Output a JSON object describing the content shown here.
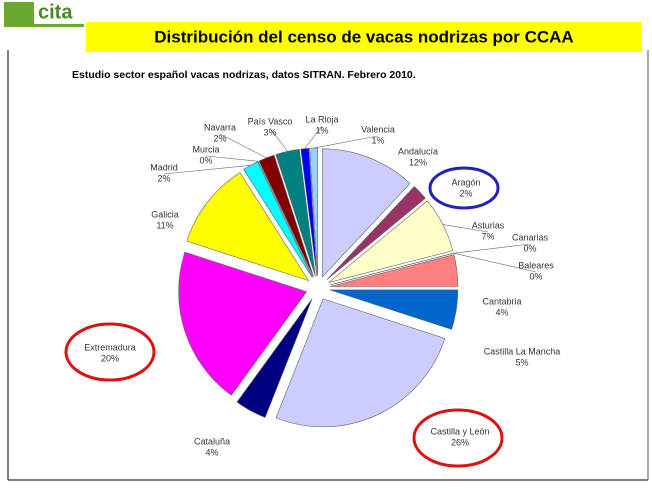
{
  "logo": "cita",
  "chart_data": {
    "type": "pie",
    "title": "Distribución del censo de vacas nodrizas por CCAA",
    "subtitle": "Estudio sector español vacas nodrizas, datos SITRAN. Febrero 2010.",
    "categories": [
      "Andalucía",
      "Aragón",
      "Asturias",
      "Canarias",
      "Baleares",
      "Cantabria",
      "Castilla La Mancha",
      "Castilla y León",
      "Cataluña",
      "Extremadura",
      "Galicia",
      "Madrid",
      "Murcia",
      "Navarra",
      "País Vasco",
      "La Rioja",
      "Valencia"
    ],
    "values": [
      12,
      2,
      7,
      0,
      0,
      4,
      5,
      26,
      4,
      20,
      11,
      2,
      0,
      2,
      3,
      1,
      1
    ],
    "value_labels": [
      "12%",
      "2%",
      "7%",
      "0%",
      "0%",
      "4%",
      "5%",
      "26%",
      "4%",
      "20%",
      "11%",
      "2%",
      "0%",
      "2%",
      "3%",
      "1%",
      "1%"
    ],
    "colors": [
      "#ccccff",
      "#993366",
      "#ffffcc",
      "#ccffff",
      "#660066",
      "#ff8080",
      "#0066cc",
      "#ccccff",
      "#000080",
      "#ff00ff",
      "#ffff00",
      "#00ffff",
      "#800080",
      "#800000",
      "#008080",
      "#0000ff",
      "#99ccff"
    ]
  }
}
